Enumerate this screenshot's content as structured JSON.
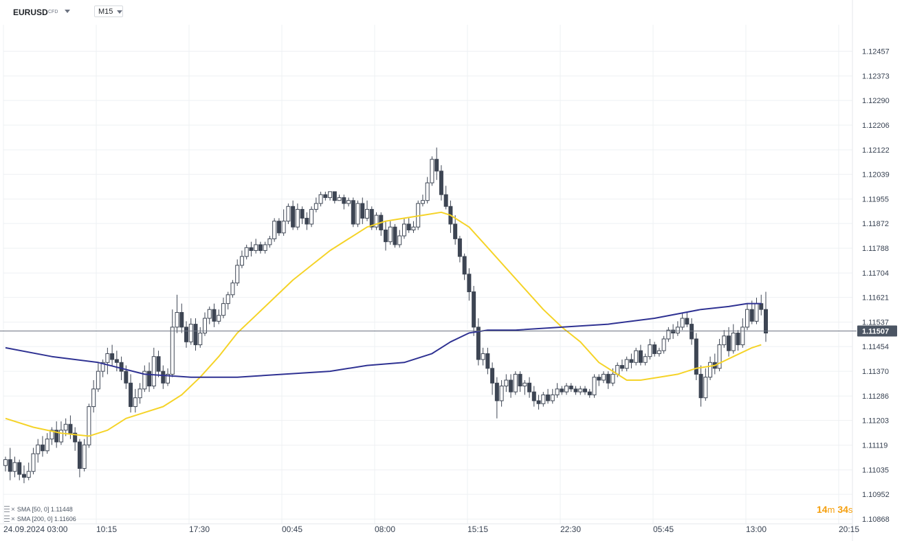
{
  "header": {
    "symbol": "EURUSD",
    "instrument_type": "CFD",
    "timeframe": "M15"
  },
  "indicators": [
    {
      "label": "SMA [50, 0]",
      "value": "1.11448",
      "color": "#f5d327"
    },
    {
      "label": "SMA [200, 0]",
      "value": "1.11606",
      "color": "#2e3192"
    }
  ],
  "timer": {
    "minutes": "14",
    "minutes_unit": "m",
    "seconds": "34",
    "seconds_unit": "s"
  },
  "chart_data": {
    "type": "candlestick",
    "symbol": "EURUSD",
    "timeframe": "M15",
    "y_ticks": [
      "1.12457",
      "1.12373",
      "1.12290",
      "1.12206",
      "1.12122",
      "1.12039",
      "1.11955",
      "1.11872",
      "1.11788",
      "1.11704",
      "1.11621",
      "1.11537",
      "1.11454",
      "1.11370",
      "1.11286",
      "1.11203",
      "1.11119",
      "1.11035",
      "1.10952",
      "1.10868"
    ],
    "ylim": [
      1.10852,
      1.12547
    ],
    "x_ticks": [
      "24.09.2024  03:00",
      "10:15",
      "17:30",
      "00:45",
      "08:00",
      "15:15",
      "22:30",
      "05:45",
      "13:00",
      "20:15"
    ],
    "last_price": "1.11507",
    "candles": [
      [
        1.1105,
        1.1107,
        1.1103,
        1.1108
      ],
      [
        1.1107,
        1.1103,
        1.11,
        1.1111
      ],
      [
        1.1103,
        1.1106,
        1.1101,
        1.1108
      ],
      [
        1.1106,
        1.1102,
        1.11,
        1.1107
      ],
      [
        1.1102,
        1.1101,
        1.1099,
        1.1105
      ],
      [
        1.1101,
        1.1103,
        1.11,
        1.1106
      ],
      [
        1.1103,
        1.1109,
        1.1102,
        1.1111
      ],
      [
        1.1109,
        1.1112,
        1.1106,
        1.1114
      ],
      [
        1.1112,
        1.111,
        1.1108,
        1.1115
      ],
      [
        1.111,
        1.1114,
        1.1109,
        1.1116
      ],
      [
        1.1114,
        1.1117,
        1.1112,
        1.1118
      ],
      [
        1.1117,
        1.1113,
        1.1111,
        1.112
      ],
      [
        1.1113,
        1.1117,
        1.1112,
        1.112
      ],
      [
        1.1117,
        1.1119,
        1.1115,
        1.1121
      ],
      [
        1.1119,
        1.1116,
        1.1114,
        1.1122
      ],
      [
        1.1116,
        1.1113,
        1.111,
        1.1118
      ],
      [
        1.1113,
        1.1104,
        1.1101,
        1.1114
      ],
      [
        1.1104,
        1.1112,
        1.1103,
        1.1114
      ],
      [
        1.1112,
        1.1125,
        1.1111,
        1.1126
      ],
      [
        1.1125,
        1.1131,
        1.1123,
        1.1134
      ],
      [
        1.1131,
        1.1137,
        1.113,
        1.114
      ],
      [
        1.1137,
        1.114,
        1.1135,
        1.1141
      ],
      [
        1.114,
        1.1143,
        1.1136,
        1.1145
      ],
      [
        1.1143,
        1.1141,
        1.1139,
        1.1146
      ],
      [
        1.1141,
        1.114,
        1.1137,
        1.1144
      ],
      [
        1.114,
        1.1137,
        1.1134,
        1.1142
      ],
      [
        1.1137,
        1.1133,
        1.1131,
        1.1139
      ],
      [
        1.1133,
        1.1125,
        1.1123,
        1.1136
      ],
      [
        1.1125,
        1.1128,
        1.1123,
        1.1131
      ],
      [
        1.1128,
        1.1131,
        1.1126,
        1.1133
      ],
      [
        1.1131,
        1.1137,
        1.113,
        1.1139
      ],
      [
        1.1137,
        1.1132,
        1.113,
        1.114
      ],
      [
        1.1132,
        1.1142,
        1.1131,
        1.1145
      ],
      [
        1.1142,
        1.1137,
        1.1135,
        1.1144
      ],
      [
        1.1137,
        1.1133,
        1.1131,
        1.1139
      ],
      [
        1.1133,
        1.1136,
        1.1132,
        1.1138
      ],
      [
        1.1136,
        1.1152,
        1.1135,
        1.1158
      ],
      [
        1.1152,
        1.1157,
        1.115,
        1.1163
      ],
      [
        1.1157,
        1.1152,
        1.115,
        1.116
      ],
      [
        1.1152,
        1.1147,
        1.1145,
        1.1154
      ],
      [
        1.1147,
        1.1153,
        1.1146,
        1.1155
      ],
      [
        1.1153,
        1.1146,
        1.1144,
        1.1155
      ],
      [
        1.1146,
        1.115,
        1.1145,
        1.1152
      ],
      [
        1.115,
        1.1155,
        1.1149,
        1.1157
      ],
      [
        1.1155,
        1.1158,
        1.1153,
        1.1159
      ],
      [
        1.1158,
        1.1154,
        1.1152,
        1.116
      ],
      [
        1.1154,
        1.1156,
        1.1153,
        1.1158
      ],
      [
        1.1156,
        1.116,
        1.1155,
        1.1162
      ],
      [
        1.116,
        1.1163,
        1.1158,
        1.1164
      ],
      [
        1.1163,
        1.1167,
        1.1162,
        1.1168
      ],
      [
        1.1167,
        1.1173,
        1.1166,
        1.1175
      ],
      [
        1.1173,
        1.1176,
        1.1172,
        1.1178
      ],
      [
        1.1176,
        1.1179,
        1.1175,
        1.118
      ],
      [
        1.1179,
        1.1178,
        1.1176,
        1.1181
      ],
      [
        1.1178,
        1.118,
        1.1177,
        1.1182
      ],
      [
        1.118,
        1.1178,
        1.1177,
        1.1181
      ],
      [
        1.1178,
        1.118,
        1.1177,
        1.1181
      ],
      [
        1.118,
        1.1182,
        1.1179,
        1.1183
      ],
      [
        1.1182,
        1.1188,
        1.1181,
        1.1189
      ],
      [
        1.1188,
        1.1184,
        1.1183,
        1.1189
      ],
      [
        1.1184,
        1.1188,
        1.1183,
        1.1192
      ],
      [
        1.1188,
        1.1193,
        1.1187,
        1.1194
      ],
      [
        1.1193,
        1.1186,
        1.1185,
        1.1195
      ],
      [
        1.1186,
        1.1192,
        1.1185,
        1.1194
      ],
      [
        1.1192,
        1.1189,
        1.1187,
        1.1193
      ],
      [
        1.1189,
        1.1187,
        1.1185,
        1.1191
      ],
      [
        1.1187,
        1.1192,
        1.1186,
        1.1193
      ],
      [
        1.1192,
        1.1194,
        1.1191,
        1.1196
      ],
      [
        1.1194,
        1.1197,
        1.1193,
        1.1198
      ],
      [
        1.1197,
        1.1196,
        1.1195,
        1.1198
      ],
      [
        1.1196,
        1.1198,
        1.1195,
        1.1198
      ],
      [
        1.1198,
        1.1195,
        1.1194,
        1.1198
      ],
      [
        1.1195,
        1.1196,
        1.1195,
        1.1197
      ],
      [
        1.1196,
        1.1194,
        1.1192,
        1.1197
      ],
      [
        1.1194,
        1.1195,
        1.1193,
        1.1196
      ],
      [
        1.1195,
        1.1187,
        1.1186,
        1.1196
      ],
      [
        1.1187,
        1.1194,
        1.1186,
        1.1195
      ],
      [
        1.1194,
        1.1189,
        1.1187,
        1.1196
      ],
      [
        1.1189,
        1.1192,
        1.1188,
        1.1195
      ],
      [
        1.1192,
        1.1186,
        1.1185,
        1.1193
      ],
      [
        1.1186,
        1.119,
        1.1185,
        1.1191
      ],
      [
        1.119,
        1.1185,
        1.1183,
        1.1191
      ],
      [
        1.1185,
        1.1181,
        1.1178,
        1.1188
      ],
      [
        1.1181,
        1.1186,
        1.118,
        1.1188
      ],
      [
        1.1186,
        1.118,
        1.1179,
        1.1187
      ],
      [
        1.118,
        1.1183,
        1.1179,
        1.1185
      ],
      [
        1.1183,
        1.1187,
        1.1182,
        1.1189
      ],
      [
        1.1187,
        1.1185,
        1.1184,
        1.1189
      ],
      [
        1.1185,
        1.1186,
        1.1184,
        1.1188
      ],
      [
        1.1186,
        1.1194,
        1.1185,
        1.1195
      ],
      [
        1.1194,
        1.1195,
        1.1193,
        1.1197
      ],
      [
        1.1195,
        1.1201,
        1.1194,
        1.1203
      ],
      [
        1.1201,
        1.1209,
        1.12,
        1.121
      ],
      [
        1.1209,
        1.1205,
        1.1202,
        1.1213
      ],
      [
        1.1205,
        1.1197,
        1.1195,
        1.1207
      ],
      [
        1.1197,
        1.1193,
        1.1192,
        1.12
      ],
      [
        1.1193,
        1.1187,
        1.1184,
        1.1195
      ],
      [
        1.1187,
        1.1182,
        1.118,
        1.119
      ],
      [
        1.1182,
        1.1176,
        1.1174,
        1.1183
      ],
      [
        1.1176,
        1.117,
        1.1168,
        1.1177
      ],
      [
        1.117,
        1.1164,
        1.1161,
        1.1172
      ],
      [
        1.1164,
        1.1152,
        1.1149,
        1.1166
      ],
      [
        1.1152,
        1.1141,
        1.1139,
        1.1155
      ],
      [
        1.1141,
        1.1143,
        1.1139,
        1.1145
      ],
      [
        1.1143,
        1.1138,
        1.1136,
        1.1145
      ],
      [
        1.1138,
        1.1133,
        1.1129,
        1.114
      ],
      [
        1.1133,
        1.1127,
        1.1121,
        1.1135
      ],
      [
        1.1127,
        1.1132,
        1.1125,
        1.1134
      ],
      [
        1.1132,
        1.1134,
        1.113,
        1.1136
      ],
      [
        1.1134,
        1.113,
        1.1128,
        1.1136
      ],
      [
        1.113,
        1.1136,
        1.1129,
        1.1137
      ],
      [
        1.1136,
        1.1132,
        1.113,
        1.1137
      ],
      [
        1.1132,
        1.1133,
        1.1129,
        1.1134
      ],
      [
        1.1133,
        1.113,
        1.1128,
        1.1135
      ],
      [
        1.113,
        1.1127,
        1.1125,
        1.1132
      ],
      [
        1.1127,
        1.1126,
        1.1124,
        1.1129
      ],
      [
        1.1126,
        1.1129,
        1.1125,
        1.113
      ],
      [
        1.1129,
        1.1127,
        1.1126,
        1.1131
      ],
      [
        1.1127,
        1.1129,
        1.1126,
        1.1131
      ],
      [
        1.1129,
        1.1131,
        1.1128,
        1.1133
      ],
      [
        1.1131,
        1.113,
        1.1129,
        1.1132
      ],
      [
        1.113,
        1.1132,
        1.1129,
        1.1133
      ],
      [
        1.1132,
        1.1131,
        1.113,
        1.1133
      ],
      [
        1.1131,
        1.113,
        1.1129,
        1.1132
      ],
      [
        1.113,
        1.1131,
        1.1129,
        1.1132
      ],
      [
        1.1131,
        1.113,
        1.1129,
        1.1132
      ],
      [
        1.113,
        1.1129,
        1.1128,
        1.1131
      ],
      [
        1.1129,
        1.1135,
        1.1128,
        1.1136
      ],
      [
        1.1135,
        1.1134,
        1.1132,
        1.1136
      ],
      [
        1.1134,
        1.1136,
        1.1133,
        1.1137
      ],
      [
        1.1136,
        1.1133,
        1.1131,
        1.1137
      ],
      [
        1.1133,
        1.1136,
        1.1132,
        1.1138
      ],
      [
        1.1136,
        1.1139,
        1.1135,
        1.114
      ],
      [
        1.1139,
        1.1138,
        1.1137,
        1.1141
      ],
      [
        1.1138,
        1.1141,
        1.1137,
        1.1142
      ],
      [
        1.1141,
        1.114,
        1.1138,
        1.1143
      ],
      [
        1.114,
        1.1144,
        1.1139,
        1.1145
      ],
      [
        1.1144,
        1.114,
        1.1139,
        1.1146
      ],
      [
        1.114,
        1.1142,
        1.1139,
        1.1143
      ],
      [
        1.1142,
        1.1146,
        1.1141,
        1.1148
      ],
      [
        1.1146,
        1.1143,
        1.1142,
        1.1147
      ],
      [
        1.1143,
        1.1144,
        1.1142,
        1.1145
      ],
      [
        1.1144,
        1.1148,
        1.1143,
        1.1149
      ],
      [
        1.1148,
        1.1151,
        1.1147,
        1.1152
      ],
      [
        1.1151,
        1.115,
        1.1148,
        1.1153
      ],
      [
        1.115,
        1.1152,
        1.1149,
        1.1154
      ],
      [
        1.1152,
        1.1155,
        1.1151,
        1.1157
      ],
      [
        1.1155,
        1.1153,
        1.1152,
        1.1157
      ],
      [
        1.1153,
        1.1148,
        1.1146,
        1.1155
      ],
      [
        1.1148,
        1.1136,
        1.1134,
        1.115
      ],
      [
        1.1136,
        1.1128,
        1.1125,
        1.1139
      ],
      [
        1.1128,
        1.1135,
        1.1127,
        1.1138
      ],
      [
        1.1135,
        1.114,
        1.1134,
        1.1142
      ],
      [
        1.114,
        1.1138,
        1.1136,
        1.1143
      ],
      [
        1.1138,
        1.1146,
        1.1137,
        1.1148
      ],
      [
        1.1146,
        1.1149,
        1.1145,
        1.1151
      ],
      [
        1.1149,
        1.1144,
        1.1142,
        1.1152
      ],
      [
        1.1144,
        1.115,
        1.1143,
        1.1153
      ],
      [
        1.115,
        1.1146,
        1.1144,
        1.1151
      ],
      [
        1.1146,
        1.1152,
        1.1145,
        1.1155
      ],
      [
        1.1152,
        1.1158,
        1.1151,
        1.116
      ],
      [
        1.1158,
        1.1154,
        1.1153,
        1.1161
      ],
      [
        1.1154,
        1.116,
        1.1153,
        1.1162
      ],
      [
        1.116,
        1.1158,
        1.1156,
        1.1163
      ],
      [
        1.1158,
        1.115,
        1.1147,
        1.1164
      ]
    ],
    "series": [
      {
        "name": "SMA [50, 0]",
        "color": "#f5d327",
        "points": [
          [
            0,
            1.1121
          ],
          [
            6,
            1.1118
          ],
          [
            12,
            1.1116
          ],
          [
            18,
            1.1115
          ],
          [
            22,
            1.1117
          ],
          [
            26,
            1.1121
          ],
          [
            30,
            1.1123
          ],
          [
            34,
            1.1125
          ],
          [
            38,
            1.1129
          ],
          [
            42,
            1.1135
          ],
          [
            46,
            1.1142
          ],
          [
            50,
            1.115
          ],
          [
            54,
            1.1156
          ],
          [
            58,
            1.1162
          ],
          [
            62,
            1.1168
          ],
          [
            66,
            1.1173
          ],
          [
            70,
            1.1178
          ],
          [
            74,
            1.1182
          ],
          [
            78,
            1.1186
          ],
          [
            82,
            1.1188
          ],
          [
            86,
            1.1189
          ],
          [
            90,
            1.119
          ],
          [
            94,
            1.1191
          ],
          [
            96,
            1.119
          ],
          [
            100,
            1.1186
          ],
          [
            104,
            1.1179
          ],
          [
            108,
            1.1172
          ],
          [
            112,
            1.1165
          ],
          [
            116,
            1.1158
          ],
          [
            120,
            1.1152
          ],
          [
            124,
            1.1147
          ],
          [
            128,
            1.114
          ],
          [
            131,
            1.1137
          ],
          [
            134,
            1.1134
          ],
          [
            137,
            1.1134
          ],
          [
            141,
            1.1135
          ],
          [
            145,
            1.1136
          ],
          [
            149,
            1.1138
          ],
          [
            153,
            1.1139
          ],
          [
            157,
            1.1142
          ],
          [
            161,
            1.1145
          ],
          [
            163,
            1.1146
          ]
        ]
      },
      {
        "name": "SMA [200, 0]",
        "color": "#2e3192",
        "points": [
          [
            0,
            1.1145
          ],
          [
            10,
            1.1142
          ],
          [
            20,
            1.114
          ],
          [
            30,
            1.1136
          ],
          [
            40,
            1.1135
          ],
          [
            50,
            1.1135
          ],
          [
            60,
            1.1136
          ],
          [
            70,
            1.1137
          ],
          [
            78,
            1.1139
          ],
          [
            86,
            1.114
          ],
          [
            92,
            1.1143
          ],
          [
            96,
            1.1147
          ],
          [
            100,
            1.115
          ],
          [
            104,
            1.1151
          ],
          [
            110,
            1.1151
          ],
          [
            120,
            1.1152
          ],
          [
            130,
            1.1153
          ],
          [
            140,
            1.1155
          ],
          [
            150,
            1.1158
          ],
          [
            156,
            1.1159
          ],
          [
            160,
            1.116
          ],
          [
            163,
            1.116
          ]
        ]
      }
    ],
    "up_color": "#ffffff",
    "down_color": "#3d4553",
    "grid": true
  }
}
